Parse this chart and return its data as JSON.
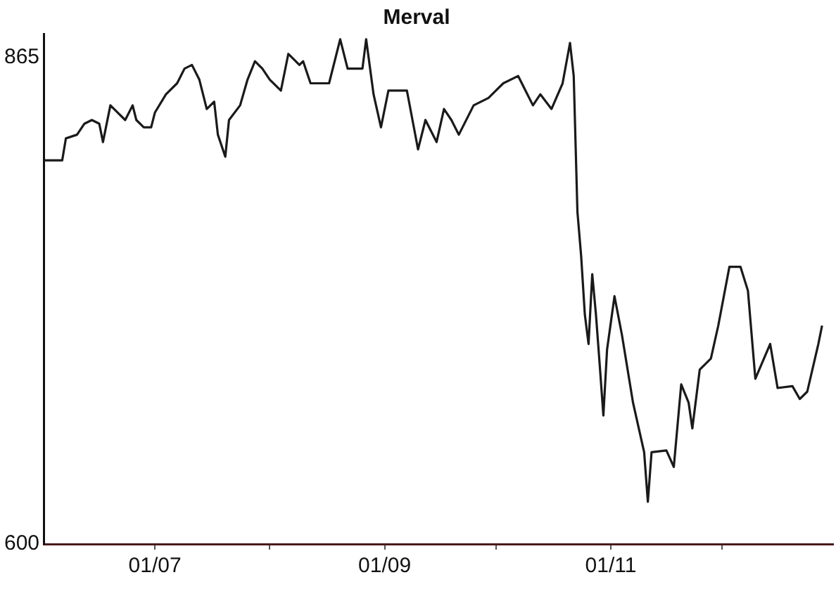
{
  "chart_data": {
    "type": "line",
    "title": "Merval",
    "x": [
      "--06-01",
      "--06-06",
      "--06-07",
      "--06-10",
      "--06-12",
      "--06-14",
      "--06-16",
      "--06-17",
      "--06-19",
      "--06-21",
      "--06-23",
      "--06-25",
      "--06-26",
      "--06-28",
      "--06-30",
      "--07-01",
      "--07-04",
      "--07-07",
      "--07-09",
      "--07-11",
      "--07-13",
      "--07-15",
      "--07-17",
      "--07-18",
      "--07-20",
      "--07-21",
      "--07-24",
      "--07-26",
      "--07-28",
      "--07-30",
      "--08-01",
      "--08-04",
      "--08-06",
      "--08-09",
      "--08-10",
      "--08-12",
      "--08-14",
      "--08-17",
      "--08-20",
      "--08-22",
      "--08-24",
      "--08-26",
      "--08-27",
      "--08-29",
      "--08-31",
      "--09-02",
      "--09-06",
      "--09-07",
      "--09-10",
      "--09-12",
      "--09-15",
      "--09-17",
      "--09-19",
      "--09-21",
      "--09-25",
      "--09-29",
      "--10-01",
      "--10-03",
      "--10-07",
      "--10-09",
      "--10-11",
      "--10-13",
      "--10-16",
      "--10-19",
      "--10-21",
      "--10-22",
      "--10-23",
      "--10-24",
      "--10-25",
      "--10-26",
      "--10-27",
      "--10-28",
      "--10-29",
      "--10-30",
      "--10-31",
      "--11-02",
      "--11-04",
      "--11-07",
      "--11-10",
      "--11-11",
      "--11-12",
      "--11-16",
      "--11-18",
      "--11-20",
      "--11-22",
      "--11-23",
      "--11-25",
      "--11-28",
      "--11-30",
      "--12-03",
      "--12-06",
      "--12-08",
      "--12-10",
      "--12-14",
      "--12-16",
      "--12-20",
      "--12-22",
      "--12-24",
      "--12-27",
      "--12-28"
    ],
    "series": [
      {
        "color": "#1a1a1a",
        "values": [
          809,
          809,
          821,
          823,
          829,
          831,
          829,
          819,
          839,
          835,
          831,
          839,
          831,
          827,
          827,
          835,
          845,
          851,
          859,
          861,
          853,
          837,
          841,
          823,
          811,
          831,
          839,
          853,
          863,
          859,
          853,
          847,
          867,
          861,
          863,
          851,
          851,
          851,
          875,
          859,
          859,
          859,
          875,
          845,
          827,
          847,
          847,
          847,
          815,
          831,
          819,
          837,
          831,
          823,
          839,
          843,
          847,
          851,
          855,
          847,
          839,
          845,
          837,
          851,
          873,
          855,
          781,
          757,
          725,
          709,
          747,
          725,
          698,
          670,
          706,
          735,
          714,
          677,
          650,
          623,
          650,
          651,
          642,
          687,
          677,
          663,
          695,
          701,
          719,
          751,
          751,
          738,
          690,
          709,
          685,
          686,
          679,
          683,
          709,
          719
        ]
      }
    ],
    "xlim": [
      "--06-01",
      "--12-31"
    ],
    "xticks": [
      {
        "value": "--07-01",
        "label": "01/07"
      },
      {
        "value": "--08-01",
        "label": null
      },
      {
        "value": "--09-01",
        "label": "01/09"
      },
      {
        "value": "--10-01",
        "label": null
      },
      {
        "value": "--11-01",
        "label": "01/11"
      },
      {
        "value": "--12-01",
        "label": null
      }
    ],
    "ylim": [
      600,
      878
    ],
    "yticks": [
      600,
      865
    ],
    "grid": false,
    "legend": false,
    "marker": "none",
    "line_style": "solid"
  }
}
